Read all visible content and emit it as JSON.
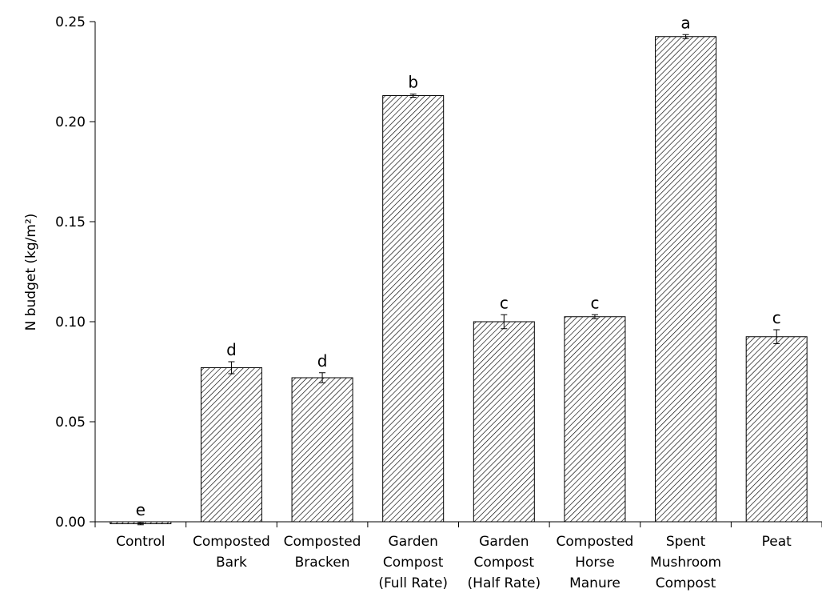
{
  "chart_data": {
    "type": "bar",
    "title": "",
    "xlabel": "",
    "ylabel": "N budget (kg/m²)",
    "ylim": [
      0,
      0.25
    ],
    "yticks": [
      "0.00",
      "0.05",
      "0.10",
      "0.15",
      "0.20",
      "0.25"
    ],
    "grid": false,
    "legend": "none",
    "bar_fill": "hatched diagonal",
    "bar_color": "#000000",
    "categories": [
      [
        "Control"
      ],
      [
        "Composted",
        "Bark"
      ],
      [
        "Composted",
        "Bracken"
      ],
      [
        "Garden",
        "Compost",
        "(Full Rate)"
      ],
      [
        "Garden",
        "Compost",
        "(Half Rate)"
      ],
      [
        "Composted",
        "Horse",
        "Manure"
      ],
      [
        "Spent",
        "Mushroom",
        "Compost"
      ],
      [
        "Peat"
      ]
    ],
    "values": [
      -0.001,
      0.077,
      0.072,
      0.213,
      0.1,
      0.1025,
      0.2425,
      0.0925
    ],
    "errors": [
      0.0005,
      0.003,
      0.0025,
      0.0008,
      0.0035,
      0.001,
      0.001,
      0.0035
    ],
    "significance_letters": [
      "e",
      "d",
      "d",
      "b",
      "c",
      "c",
      "a",
      "c"
    ]
  }
}
